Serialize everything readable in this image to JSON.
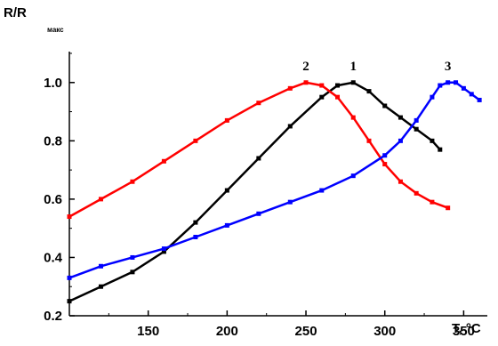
{
  "chart_data": {
    "type": "scatter",
    "ylabel_main": "R/R",
    "ylabel_sub": "макс",
    "xlabel": "T, °C",
    "xlim": [
      100,
      365
    ],
    "ylim": [
      0.2,
      1.1
    ],
    "x_ticks": [
      150,
      200,
      250,
      300,
      350
    ],
    "y_ticks": [
      0.2,
      0.4,
      0.6,
      0.8,
      1.0
    ],
    "y_tick_labels": [
      "0.2",
      "0.4",
      "0.6",
      "0.8",
      "1.0"
    ],
    "series": [
      {
        "name": "1",
        "color": "#000000",
        "x": [
          100,
          120,
          140,
          160,
          180,
          200,
          220,
          240,
          260,
          270,
          280,
          290,
          300,
          310,
          320,
          330,
          335
        ],
        "values": [
          0.25,
          0.3,
          0.35,
          0.42,
          0.52,
          0.63,
          0.74,
          0.85,
          0.95,
          0.99,
          1.0,
          0.97,
          0.92,
          0.88,
          0.84,
          0.8,
          0.77
        ]
      },
      {
        "name": "2",
        "color": "#ff0000",
        "x": [
          100,
          120,
          140,
          160,
          180,
          200,
          220,
          240,
          250,
          260,
          270,
          280,
          290,
          300,
          310,
          320,
          330,
          340
        ],
        "values": [
          0.54,
          0.6,
          0.66,
          0.73,
          0.8,
          0.87,
          0.93,
          0.98,
          1.0,
          0.99,
          0.95,
          0.88,
          0.8,
          0.72,
          0.66,
          0.62,
          0.59,
          0.57
        ]
      },
      {
        "name": "3",
        "color": "#0000ff",
        "x": [
          100,
          120,
          140,
          160,
          180,
          200,
          220,
          240,
          260,
          280,
          300,
          310,
          320,
          330,
          335,
          340,
          345,
          350,
          355,
          360
        ],
        "values": [
          0.33,
          0.37,
          0.4,
          0.43,
          0.47,
          0.51,
          0.55,
          0.59,
          0.63,
          0.68,
          0.75,
          0.8,
          0.87,
          0.95,
          0.99,
          1.0,
          1.0,
          0.98,
          0.96,
          0.94
        ]
      }
    ]
  }
}
